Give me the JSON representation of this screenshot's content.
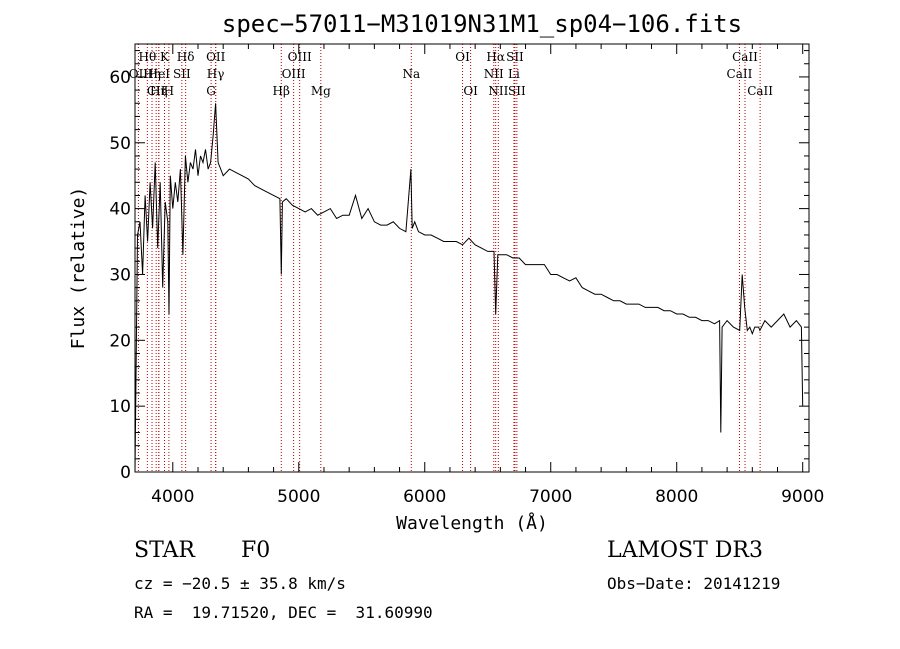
{
  "chart_data": {
    "type": "line",
    "title": "spec−57011−M31019N31M1_sp04−106.fits",
    "xlabel": "Wavelength (Å)",
    "ylabel": "Flux (relative)",
    "xlim": [
      3700,
      9050
    ],
    "ylim": [
      0,
      65
    ],
    "xticks": [
      4000,
      5000,
      6000,
      7000,
      8000,
      9000
    ],
    "yticks": [
      0,
      10,
      20,
      30,
      40,
      50,
      60
    ],
    "series": [
      {
        "name": "flux",
        "x": [
          3700,
          3720,
          3740,
          3760,
          3780,
          3800,
          3820,
          3840,
          3860,
          3880,
          3900,
          3920,
          3940,
          3960,
          3970,
          3980,
          4000,
          4020,
          4040,
          4060,
          4080,
          4100,
          4120,
          4140,
          4160,
          4180,
          4200,
          4220,
          4240,
          4260,
          4280,
          4300,
          4320,
          4340,
          4360,
          4380,
          4400,
          4450,
          4500,
          4550,
          4600,
          4650,
          4700,
          4750,
          4800,
          4850,
          4861,
          4870,
          4900,
          4950,
          5000,
          5050,
          5100,
          5150,
          5200,
          5250,
          5300,
          5350,
          5400,
          5450,
          5500,
          5550,
          5600,
          5650,
          5700,
          5750,
          5800,
          5850,
          5890,
          5900,
          5920,
          5950,
          6000,
          6050,
          6100,
          6150,
          6200,
          6250,
          6300,
          6350,
          6400,
          6450,
          6500,
          6550,
          6563,
          6580,
          6600,
          6650,
          6700,
          6750,
          6800,
          6850,
          6900,
          6950,
          7000,
          7050,
          7100,
          7150,
          7200,
          7250,
          7300,
          7350,
          7400,
          7450,
          7500,
          7550,
          7600,
          7650,
          7700,
          7750,
          7800,
          7850,
          7900,
          7950,
          8000,
          8050,
          8100,
          8150,
          8200,
          8250,
          8300,
          8340,
          8350,
          8360,
          8400,
          8450,
          8500,
          8520,
          8540,
          8560,
          8580,
          8600,
          8620,
          8650,
          8660,
          8700,
          8750,
          8800,
          8850,
          8900,
          8950,
          8990,
          9000
        ],
        "y": [
          0,
          36,
          38,
          30,
          42,
          35,
          44,
          37,
          47,
          34,
          44,
          28,
          41,
          38,
          24,
          45,
          40,
          44,
          41,
          46,
          33,
          48,
          44,
          47,
          46,
          49,
          45,
          48,
          47,
          49,
          46,
          47,
          51,
          56,
          47,
          46,
          45,
          46,
          45.5,
          45,
          44.5,
          43.5,
          43,
          42.5,
          42,
          41.5,
          30,
          41,
          41.5,
          40.5,
          40,
          39.5,
          40,
          39,
          39.5,
          40,
          38.5,
          39,
          39,
          42,
          38.5,
          40,
          38,
          37.5,
          37.5,
          38,
          37,
          36.5,
          46,
          37,
          38,
          36.5,
          36,
          36,
          35.5,
          35,
          35,
          35,
          34.5,
          35.5,
          34.5,
          34,
          33.5,
          33.5,
          24,
          33,
          33,
          33,
          32.5,
          32.5,
          31.5,
          31.5,
          31.5,
          31.5,
          30,
          30,
          29.5,
          29,
          29.5,
          28,
          27.5,
          27,
          27,
          26.5,
          26,
          26,
          25.5,
          25.5,
          25.5,
          25,
          25,
          25,
          24.5,
          24.5,
          24,
          24,
          23.5,
          23.5,
          23,
          23,
          22.5,
          23,
          6,
          22,
          23,
          22,
          21.5,
          30,
          25,
          21.5,
          22,
          21,
          22,
          22,
          21.5,
          23,
          22,
          23,
          24,
          22,
          23,
          22,
          10
        ]
      }
    ],
    "lines": [
      {
        "label": "Hθ",
        "wl": 3798,
        "row": 0
      },
      {
        "label": "OII",
        "wl": 3727,
        "row": 1
      },
      {
        "label": "Hη",
        "wl": 3835,
        "row": 1
      },
      {
        "label": "CII",
        "wl": 3868,
        "row": 2
      },
      {
        "label": "K",
        "wl": 3934,
        "row": 0
      },
      {
        "label": "HeI",
        "wl": 3889,
        "row": 1
      },
      {
        "label": "Hη",
        "wl": 3889,
        "row": 2
      },
      {
        "label": "SII",
        "wl": 4072,
        "row": 1
      },
      {
        "label": "H",
        "wl": 3969,
        "row": 2
      },
      {
        "label": "Hδ",
        "wl": 4102,
        "row": 0
      },
      {
        "label": "G",
        "wl": 4304,
        "row": 2
      },
      {
        "label": "OII",
        "wl": 4341,
        "row": 0
      },
      {
        "label": "Hγ",
        "wl": 4340,
        "row": 1
      },
      {
        "label": "Hβ",
        "wl": 4861,
        "row": 2
      },
      {
        "label": "OIII",
        "wl": 5007,
        "row": 0
      },
      {
        "label": "OIII",
        "wl": 4959,
        "row": 1
      },
      {
        "label": "Mg",
        "wl": 5175,
        "row": 2
      },
      {
        "label": "Na",
        "wl": 5893,
        "row": 1
      },
      {
        "label": "OI",
        "wl": 6300,
        "row": 0
      },
      {
        "label": "OI",
        "wl": 6364,
        "row": 2
      },
      {
        "label": "Hα",
        "wl": 6563,
        "row": 0
      },
      {
        "label": "NII",
        "wl": 6548,
        "row": 1
      },
      {
        "label": "NII",
        "wl": 6584,
        "row": 2
      },
      {
        "label": "SII",
        "wl": 6716,
        "row": 0
      },
      {
        "label": "Li",
        "wl": 6708,
        "row": 1
      },
      {
        "label": "SII",
        "wl": 6731,
        "row": 2
      },
      {
        "label": "CaII",
        "wl": 8542,
        "row": 0
      },
      {
        "label": "CaII",
        "wl": 8498,
        "row": 1
      },
      {
        "label": "CaII",
        "wl": 8662,
        "row": 2
      }
    ]
  },
  "info": {
    "class": "STAR",
    "subclass": "F0",
    "survey": "LAMOST DR3",
    "cz": "cz = −20.5 ± 35.8 km/s",
    "obs_date": "Obs−Date: 20141219",
    "radec": "RA =  19.71520, DEC =  31.60990"
  }
}
